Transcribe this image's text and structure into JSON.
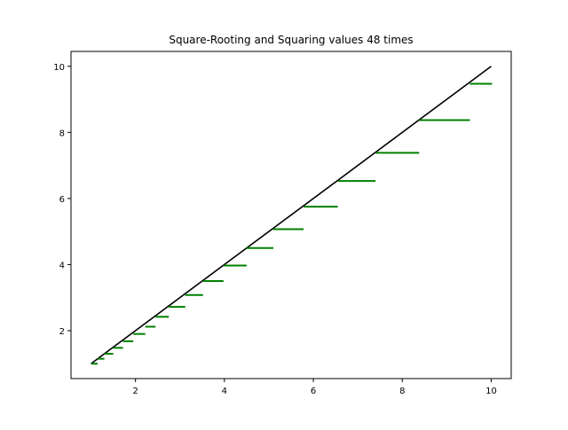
{
  "chart_data": {
    "type": "line",
    "title": "Square-Rooting and Squaring values 48 times",
    "xlabel": "",
    "ylabel": "",
    "xlim": [
      0.55,
      10.45
    ],
    "ylim": [
      0.55,
      10.45
    ],
    "x_ticks": [
      2,
      4,
      6,
      8,
      10
    ],
    "y_ticks": [
      2,
      4,
      6,
      8,
      10
    ],
    "x_tick_labels": [
      "2",
      "4",
      "6",
      "8",
      "10"
    ],
    "y_tick_labels": [
      "2",
      "4",
      "6",
      "8",
      "10"
    ],
    "grid": false,
    "legend": "none",
    "series": [
      {
        "role": "identity",
        "color": "#000000",
        "x": [
          1,
          10
        ],
        "y": [
          1,
          10
        ]
      },
      {
        "role": "steps",
        "color": "#008000",
        "steps": [
          {
            "x0": 1.0,
            "x1": 1.15,
            "y": 1.0
          },
          {
            "x0": 1.15,
            "x1": 1.3,
            "y": 1.15
          },
          {
            "x0": 1.3,
            "x1": 1.5,
            "y": 1.3
          },
          {
            "x0": 1.5,
            "x1": 1.72,
            "y": 1.48
          },
          {
            "x0": 1.72,
            "x1": 1.95,
            "y": 1.68
          },
          {
            "x0": 1.95,
            "x1": 2.22,
            "y": 1.9
          },
          {
            "x0": 2.22,
            "x1": 2.45,
            "y": 2.12
          },
          {
            "x0": 2.45,
            "x1": 2.75,
            "y": 2.42
          },
          {
            "x0": 2.75,
            "x1": 3.12,
            "y": 2.72
          },
          {
            "x0": 3.12,
            "x1": 3.52,
            "y": 3.08
          },
          {
            "x0": 3.52,
            "x1": 3.98,
            "y": 3.5
          },
          {
            "x0": 3.98,
            "x1": 4.5,
            "y": 3.97
          },
          {
            "x0": 4.5,
            "x1": 5.1,
            "y": 4.5
          },
          {
            "x0": 5.1,
            "x1": 5.78,
            "y": 5.07
          },
          {
            "x0": 5.78,
            "x1": 6.55,
            "y": 5.75
          },
          {
            "x0": 6.55,
            "x1": 7.4,
            "y": 6.53
          },
          {
            "x0": 7.4,
            "x1": 8.38,
            "y": 7.38
          },
          {
            "x0": 8.38,
            "x1": 9.52,
            "y": 8.37
          },
          {
            "x0": 9.52,
            "x1": 10.02,
            "y": 9.47
          }
        ]
      }
    ]
  }
}
